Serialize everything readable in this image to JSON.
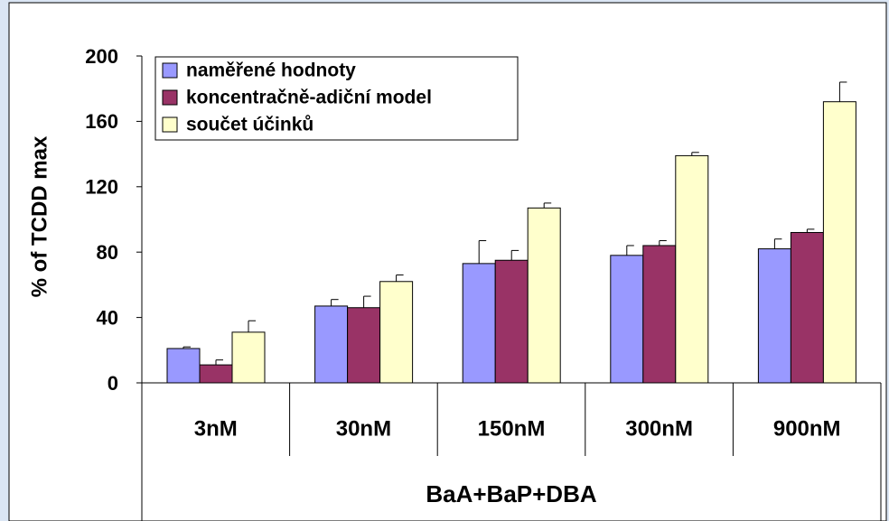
{
  "chart_data": {
    "type": "bar",
    "x_label": "BaA+BaP+DBA",
    "y_label": "% of TCDD max",
    "categories": [
      "3nM",
      "30nM",
      "150nM",
      "300nM",
      "900nM"
    ],
    "series": [
      {
        "name": "naměřené hodnoty",
        "color": "#9999ff",
        "values": [
          21,
          47,
          73,
          78,
          82
        ],
        "errors": [
          1,
          4,
          14,
          6,
          6
        ]
      },
      {
        "name": "koncentračně-adiční model",
        "color": "#993366",
        "values": [
          11,
          46,
          75,
          84,
          92
        ],
        "errors": [
          3,
          7,
          6,
          3,
          2
        ]
      },
      {
        "name": "součet účinků",
        "color": "#ffffcc",
        "values": [
          31,
          62,
          107,
          139,
          172
        ],
        "errors": [
          7,
          4,
          3,
          2,
          12
        ]
      }
    ],
    "ylim": [
      0,
      200
    ],
    "yticks": [
      0,
      40,
      80,
      120,
      160,
      200
    ]
  }
}
